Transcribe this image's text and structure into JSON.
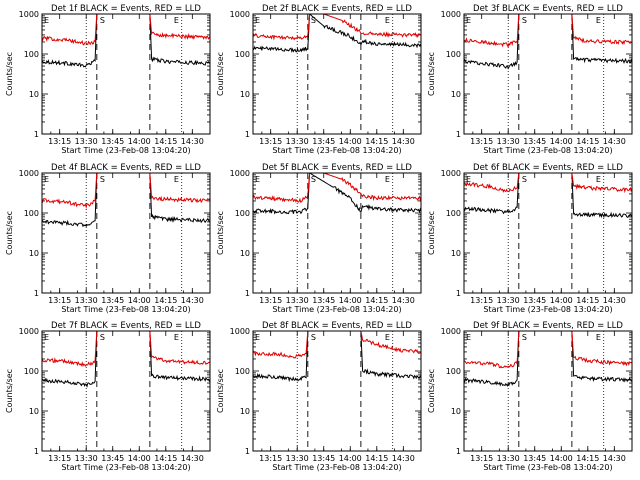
{
  "figure": {
    "xaxis_title": "Start Time (23-Feb-08 13:04:20)",
    "yaxis_title": "Counts/sec",
    "marker_start": "S",
    "marker_end": "E",
    "colors": {
      "events": "#000000",
      "lld": "#e00000",
      "axes": "#000000"
    }
  },
  "chart_data": [
    {
      "type": "line",
      "title": "Det 1f BLACK = Events, RED = LLD",
      "xlabel": "Start Time (23-Feb-08 13:04:20)",
      "ylabel": "Counts/sec",
      "yscale": "log",
      "ylim": [
        1,
        1000
      ],
      "x_ticks": [
        "13:15",
        "13:30",
        "13:45",
        "14:00",
        "14:15",
        "14:30"
      ],
      "y_ticks": [
        "1",
        "10",
        "100",
        "1000"
      ],
      "start_marker": "13:36",
      "end_marker": "14:06",
      "dotted_lines": [
        "13:30",
        "14:24"
      ],
      "series": [
        {
          "name": "Events",
          "color": "#000000",
          "x": [
            "13:05",
            "13:20",
            "13:30",
            "13:35",
            "13:36",
            "14:06",
            "14:07",
            "14:15",
            "14:30",
            "14:40"
          ],
          "values": [
            65,
            58,
            50,
            70,
            1000,
            1000,
            75,
            65,
            60,
            58
          ]
        },
        {
          "name": "LLD",
          "color": "#e00000",
          "x": [
            "13:05",
            "13:20",
            "13:30",
            "13:35",
            "13:36",
            "14:06",
            "14:07",
            "14:15",
            "14:30",
            "14:40"
          ],
          "values": [
            250,
            220,
            180,
            200,
            1000,
            1000,
            320,
            290,
            270,
            265
          ]
        }
      ]
    },
    {
      "type": "line",
      "title": "Det 2f BLACK = Events, RED = LLD",
      "xlabel": "Start Time (23-Feb-08 13:04:20)",
      "ylabel": "Counts/sec",
      "yscale": "log",
      "ylim": [
        1,
        1000
      ],
      "x_ticks": [
        "13:15",
        "13:30",
        "13:45",
        "14:00",
        "14:15",
        "14:30"
      ],
      "y_ticks": [
        "1",
        "10",
        "100",
        "1000"
      ],
      "start_marker": "13:36",
      "end_marker": "14:06",
      "dotted_lines": [
        "13:30",
        "14:24"
      ],
      "series": [
        {
          "name": "Events",
          "color": "#000000",
          "x": [
            "13:05",
            "13:20",
            "13:32",
            "13:36",
            "13:37",
            "13:45",
            "14:00",
            "14:06",
            "14:07",
            "14:15",
            "14:30",
            "14:40"
          ],
          "values": [
            140,
            130,
            125,
            140,
            1000,
            500,
            280,
            170,
            210,
            180,
            170,
            165
          ]
        },
        {
          "name": "LLD",
          "color": "#e00000",
          "x": [
            "13:05",
            "13:20",
            "13:32",
            "13:36",
            "13:37",
            "13:45",
            "13:55",
            "14:00",
            "14:06",
            "14:07",
            "14:15",
            "14:30",
            "14:40"
          ],
          "values": [
            290,
            260,
            250,
            290,
            1000,
            1000,
            700,
            520,
            350,
            330,
            310,
            300,
            295
          ]
        }
      ]
    },
    {
      "type": "line",
      "title": "Det 3f BLACK = Events, RED = LLD",
      "xlabel": "Start Time (23-Feb-08 13:04:20)",
      "ylabel": "Counts/sec",
      "yscale": "log",
      "ylim": [
        1,
        1000
      ],
      "x_ticks": [
        "13:15",
        "13:30",
        "13:45",
        "14:00",
        "14:15",
        "14:30"
      ],
      "y_ticks": [
        "1",
        "10",
        "100",
        "1000"
      ],
      "start_marker": "13:36",
      "end_marker": "14:06",
      "dotted_lines": [
        "13:30",
        "14:24"
      ],
      "series": [
        {
          "name": "Events",
          "color": "#000000",
          "x": [
            "13:05",
            "13:20",
            "13:30",
            "13:35",
            "13:36",
            "14:06",
            "14:07",
            "14:15",
            "14:30",
            "14:40"
          ],
          "values": [
            65,
            55,
            48,
            60,
            1000,
            1000,
            75,
            70,
            68,
            66
          ]
        },
        {
          "name": "LLD",
          "color": "#e00000",
          "x": [
            "13:05",
            "13:20",
            "13:30",
            "13:35",
            "13:36",
            "14:06",
            "14:07",
            "14:15",
            "14:30",
            "14:40"
          ],
          "values": [
            220,
            190,
            170,
            210,
            1000,
            1000,
            250,
            210,
            200,
            200
          ]
        }
      ]
    },
    {
      "type": "line",
      "title": "Det 4f BLACK = Events, RED = LLD",
      "xlabel": "Start Time (23-Feb-08 13:04:20)",
      "ylabel": "Counts/sec",
      "yscale": "log",
      "ylim": [
        1,
        1000
      ],
      "x_ticks": [
        "13:15",
        "13:30",
        "13:45",
        "14:00",
        "14:15",
        "14:30"
      ],
      "y_ticks": [
        "1",
        "10",
        "100",
        "1000"
      ],
      "start_marker": "13:36",
      "end_marker": "14:06",
      "dotted_lines": [
        "13:30",
        "14:24"
      ],
      "series": [
        {
          "name": "Events",
          "color": "#000000",
          "x": [
            "13:05",
            "13:20",
            "13:30",
            "13:35",
            "13:36",
            "14:06",
            "14:07",
            "14:15",
            "14:30",
            "14:40"
          ],
          "values": [
            62,
            55,
            50,
            65,
            1000,
            1000,
            80,
            70,
            66,
            64
          ]
        },
        {
          "name": "LLD",
          "color": "#e00000",
          "x": [
            "13:05",
            "13:20",
            "13:30",
            "13:35",
            "13:36",
            "14:06",
            "14:07",
            "14:15",
            "14:30",
            "14:40"
          ],
          "values": [
            210,
            180,
            150,
            200,
            1000,
            1000,
            240,
            220,
            210,
            205
          ]
        }
      ]
    },
    {
      "type": "line",
      "title": "Det 5f BLACK = Events, RED = LLD",
      "xlabel": "Start Time (23-Feb-08 13:04:20)",
      "ylabel": "Counts/sec",
      "yscale": "log",
      "ylim": [
        1,
        1000
      ],
      "x_ticks": [
        "13:15",
        "13:30",
        "13:45",
        "14:00",
        "14:15",
        "14:30"
      ],
      "y_ticks": [
        "1",
        "10",
        "100",
        "1000"
      ],
      "start_marker": "13:36",
      "end_marker": "14:06",
      "dotted_lines": [
        "13:30",
        "14:24"
      ],
      "series": [
        {
          "name": "Events",
          "color": "#000000",
          "x": [
            "13:05",
            "13:20",
            "13:32",
            "13:36",
            "13:37",
            "13:50",
            "14:00",
            "14:06",
            "14:07",
            "14:15",
            "14:30",
            "14:40"
          ],
          "values": [
            115,
            108,
            105,
            130,
            1000,
            450,
            230,
            110,
            150,
            125,
            118,
            115
          ]
        },
        {
          "name": "LLD",
          "color": "#e00000",
          "x": [
            "13:05",
            "13:20",
            "13:32",
            "13:36",
            "13:37",
            "13:45",
            "13:55",
            "14:00",
            "14:06",
            "14:07",
            "14:15",
            "14:30",
            "14:40"
          ],
          "values": [
            250,
            220,
            200,
            260,
            1000,
            1000,
            700,
            500,
            300,
            260,
            240,
            235,
            230
          ]
        }
      ]
    },
    {
      "type": "line",
      "title": "Det 6f BLACK = Events, RED = LLD",
      "xlabel": "Start Time (23-Feb-08 13:04:20)",
      "ylabel": "Counts/sec",
      "yscale": "log",
      "ylim": [
        1,
        1000
      ],
      "x_ticks": [
        "13:15",
        "13:30",
        "13:45",
        "14:00",
        "14:15",
        "14:30"
      ],
      "y_ticks": [
        "1",
        "10",
        "100",
        "1000"
      ],
      "start_marker": "13:36",
      "end_marker": "14:06",
      "dotted_lines": [
        "13:30",
        "14:24"
      ],
      "series": [
        {
          "name": "Events",
          "color": "#000000",
          "x": [
            "13:05",
            "13:20",
            "13:30",
            "13:35",
            "13:36",
            "14:06",
            "14:07",
            "14:15",
            "14:30",
            "14:40"
          ],
          "values": [
            130,
            115,
            105,
            130,
            1000,
            1000,
            95,
            90,
            88,
            85
          ]
        },
        {
          "name": "LLD",
          "color": "#e00000",
          "x": [
            "13:05",
            "13:20",
            "13:30",
            "13:35",
            "13:36",
            "14:06",
            "14:07",
            "14:15",
            "14:30",
            "14:40"
          ],
          "values": [
            550,
            450,
            350,
            450,
            1000,
            1000,
            480,
            420,
            390,
            380
          ]
        }
      ]
    },
    {
      "type": "line",
      "title": "Det 7f BLACK = Events, RED = LLD",
      "xlabel": "Start Time (23-Feb-08 13:04:20)",
      "ylabel": "Counts/sec",
      "yscale": "log",
      "ylim": [
        1,
        1000
      ],
      "x_ticks": [
        "13:15",
        "13:30",
        "13:45",
        "14:00",
        "14:15",
        "14:30"
      ],
      "y_ticks": [
        "1",
        "10",
        "100",
        "1000"
      ],
      "start_marker": "13:36",
      "end_marker": "14:06",
      "dotted_lines": [
        "13:30",
        "14:24"
      ],
      "series": [
        {
          "name": "Events",
          "color": "#000000",
          "x": [
            "13:05",
            "13:20",
            "13:30",
            "13:35",
            "13:36",
            "14:06",
            "14:07",
            "14:15",
            "14:30",
            "14:40"
          ],
          "values": [
            58,
            52,
            45,
            55,
            1000,
            1000,
            75,
            68,
            65,
            62
          ]
        },
        {
          "name": "LLD",
          "color": "#e00000",
          "x": [
            "13:05",
            "13:20",
            "13:30",
            "13:35",
            "13:36",
            "14:06",
            "14:07",
            "14:15",
            "14:30",
            "14:40"
          ],
          "values": [
            190,
            170,
            140,
            170,
            1000,
            1000,
            220,
            180,
            165,
            160
          ]
        }
      ]
    },
    {
      "type": "line",
      "title": "Det 8f BLACK = Events, RED = LLD",
      "xlabel": "Start Time (23-Feb-08 13:04:20)",
      "ylabel": "Counts/sec",
      "yscale": "log",
      "ylim": [
        1,
        1000
      ],
      "x_ticks": [
        "13:15",
        "13:30",
        "13:45",
        "14:00",
        "14:15",
        "14:30"
      ],
      "y_ticks": [
        "1",
        "10",
        "100",
        "1000"
      ],
      "start_marker": "13:36",
      "end_marker": "14:06",
      "dotted_lines": [
        "13:30",
        "14:24"
      ],
      "series": [
        {
          "name": "Events",
          "color": "#000000",
          "x": [
            "13:05",
            "13:20",
            "13:30",
            "13:35",
            "13:36",
            "14:06",
            "14:07",
            "14:15",
            "14:30",
            "14:40"
          ],
          "values": [
            75,
            70,
            60,
            72,
            1000,
            1000,
            100,
            85,
            75,
            72
          ]
        },
        {
          "name": "LLD",
          "color": "#e00000",
          "x": [
            "13:05",
            "13:20",
            "13:30",
            "13:35",
            "13:36",
            "14:06",
            "14:07",
            "14:20",
            "14:30",
            "14:40"
          ],
          "values": [
            280,
            260,
            230,
            270,
            1000,
            1000,
            600,
            400,
            320,
            300
          ]
        }
      ]
    },
    {
      "type": "line",
      "title": "Det 9f BLACK = Events, RED = LLD",
      "xlabel": "Start Time (23-Feb-08 13:04:20)",
      "ylabel": "Counts/sec",
      "yscale": "log",
      "ylim": [
        1,
        1000
      ],
      "x_ticks": [
        "13:15",
        "13:30",
        "13:45",
        "14:00",
        "14:15",
        "14:30"
      ],
      "y_ticks": [
        "1",
        "10",
        "100",
        "1000"
      ],
      "start_marker": "13:36",
      "end_marker": "14:06",
      "dotted_lines": [
        "13:30",
        "14:24"
      ],
      "series": [
        {
          "name": "Events",
          "color": "#000000",
          "x": [
            "13:05",
            "13:20",
            "13:30",
            "13:35",
            "13:36",
            "14:06",
            "14:07",
            "14:15",
            "14:30",
            "14:40"
          ],
          "values": [
            60,
            52,
            45,
            55,
            1000,
            1000,
            75,
            65,
            62,
            60
          ]
        },
        {
          "name": "LLD",
          "color": "#e00000",
          "x": [
            "13:05",
            "13:20",
            "13:30",
            "13:35",
            "13:36",
            "14:06",
            "14:07",
            "14:15",
            "14:30",
            "14:40"
          ],
          "values": [
            170,
            150,
            120,
            160,
            1000,
            1000,
            220,
            180,
            160,
            155
          ]
        }
      ]
    }
  ]
}
